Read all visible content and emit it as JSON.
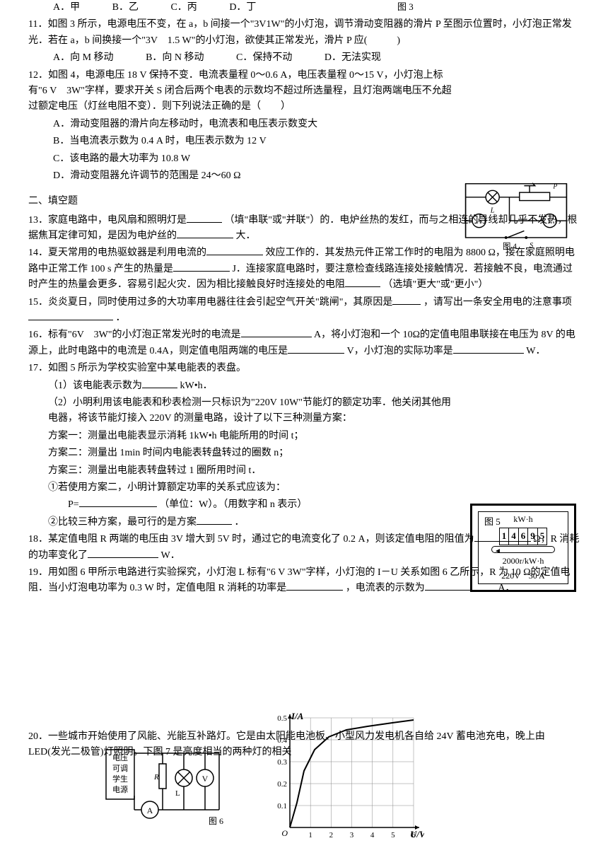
{
  "q10_opts": {
    "a": "A．甲",
    "b": "B．乙",
    "c": "C．丙",
    "d": "D．丁",
    "fig": "图 3"
  },
  "q11": {
    "text": "11．如图 3 所示，电源电压不变，在 a，b 间接一个\"3V1W\"的小灯泡，调节滑动变阻器的滑片 P 至图示位置时，小灯泡正常发光．若在 a，b 间换接一个\"3V　1.5 W\"的小灯泡，欲使其正常发光，滑片 P 应(　　　)",
    "a": "A．向 M 移动",
    "b": "B．向 N 移动",
    "c": "C．保持不动",
    "d": "D．无法实现"
  },
  "q12": {
    "text": "12．如图 4，电源电压 18 V 保持不变．电流表量程 0～0.6 A，电压表量程 0～15 V，小灯泡上标有\"6 V　3W\"字样，要求开关 S 闭合后两个电表的示数均不超过所选量程，且灯泡两端电压不允超过额定电压（灯丝电阻不变）．则下列说法正确的是（　　）",
    "a": "A．滑动变阻器的滑片向左移动时，电流表和电压表示数变大",
    "b": "B．当电流表示数为 0.4 A 时，电压表示数为 12 V",
    "c": "C．该电路的最大功率为 10.8 W",
    "d": "D．滑动变阻器允许调节的范围是 24～60  Ω",
    "fig": "图 4"
  },
  "sec2": "二、填空题",
  "q13": {
    "p1": "13．家庭电路中，电风扇和照明灯是",
    "p2": "（填\"串联\"或\"并联\"）的．电炉丝热的发红，而与之相连的导线却几乎不发热，根据焦耳定律可知，是因为电炉丝的",
    "p3": "大．"
  },
  "q14": {
    "p1": "14．夏天常用的电热驱蚊器是利用电流的",
    "p2": "效应工作的．其发热元件正常工作时的电阻为 8800  Ω，接在家庭照明电路中正常工作 100 s 产生的热量是",
    "p3": "J．连接家庭电路时，要注意检查线路连接处接触情况．若接触不良，电流通过时产生的热量会更多．容易引起火灾．因为相比接触良好时连接处的电阻",
    "p4": "（选填\"更大\"或\"更小\"）"
  },
  "q15": {
    "p1": "15．炎炎夏日，同时使用过多的大功率用电器往往会引起空气开关\"跳闸\"，其原因是",
    "p2": "，请写出一条安全用电的注意事项",
    "p3": "．"
  },
  "q16": {
    "p1": "16．标有\"6V　3W\"的小灯泡正常发光时的电流是",
    "p2": "A，将小灯泡和一个 10Ω的定值电阻串联接在电压为 8V 的电源上，此时电路中的电流是 0.4A，则定值电阻两端的电压是",
    "p3": "V，小灯泡的实际功率是",
    "p4": "W．"
  },
  "q17": {
    "head": "17．如图 5 所示为学校实验室中某电能表的表盘。",
    "s1a": "（1）该电能表示数为",
    "s1b": "kW•h．",
    "s2": "（2）小明利用该电能表和秒表检测一只标识为\"220V 10W\"节能灯的额定功率．他关闭其他用电器，将该节能灯接入 220V 的测量电路，设计了以下三种测量方案：",
    "m1": "方案一：测量出电能表显示消耗 1kW•h 电能所用的时间 t；",
    "m2": "方案二：测量出 1min 时间内电能表转盘转过的圈数 n；",
    "m3": "方案三：测量出电能表转盘转过 1 圈所用时间 t．",
    "c1": "①若使用方案二，小明计算额定功率的关系式应该为：",
    "c1p": "P=",
    "c1u": "（单位：W）。（用数字和 n 表示）",
    "c2a": "②比较三种方案，最可行的是方案",
    "c2b": "．",
    "fig": "图 5"
  },
  "q18": {
    "p1": "18．某定值电阻 R 两端的电压由 3V 增大到 5V 时，通过它的电流变化了 0.2 A，则该定值电阻的阻值为",
    "p2": "Ω，R 消耗的功率变化了",
    "p3": "W．"
  },
  "q19": {
    "p1": "19．用如图 6 甲所示电路进行实验探究，小灯泡 L 标有\"6 V 3W\"字样，小灯泡的 I－U 关系如图 6 乙所示，R 为 10  Ω的定值电阻．当小灯泡电功率为 0.3 W 时，定值电阻 R 消耗的功率是",
    "p2": "，电流表的示数为",
    "p3": "A．"
  },
  "q20": "20．一些城市开始使用了风能、光能互补路灯。它是由太阳能电池板、小型风力发电机各自给 24V 蓄电池充电，晚上由 LED(发光二极管)灯照明。下图 7 是亮度相当的两种灯的相关",
  "meter": {
    "unit": "kW·h",
    "digits": [
      "1",
      "4",
      "6",
      "9",
      "5"
    ],
    "rate": "2000r/kW·h",
    "spec": "220V　30 A"
  },
  "fig6": {
    "box": "电压\n可调\n学生\n电源",
    "label": "图 6"
  },
  "chart": {
    "ylabel": "I/A",
    "xlabel": "U/V",
    "yticks": [
      "0.1",
      "0.2",
      "0.3",
      "0.4",
      "0.5"
    ],
    "xticks": [
      "1",
      "2",
      "3",
      "4",
      "5",
      "6"
    ],
    "origin": "O",
    "curve_points": [
      [
        0,
        0
      ],
      [
        10,
        35
      ],
      [
        20,
        80
      ],
      [
        35,
        110
      ],
      [
        55,
        128
      ],
      [
        80,
        138
      ],
      [
        110,
        143
      ],
      [
        145,
        148
      ],
      [
        175,
        152
      ]
    ],
    "axis_color": "#000000",
    "grid_color": "#888888",
    "line_width": 2
  },
  "circuit4": {
    "labels": {
      "L": "L",
      "A": "A",
      "V": "V",
      "S": "S",
      "P": "P"
    }
  }
}
